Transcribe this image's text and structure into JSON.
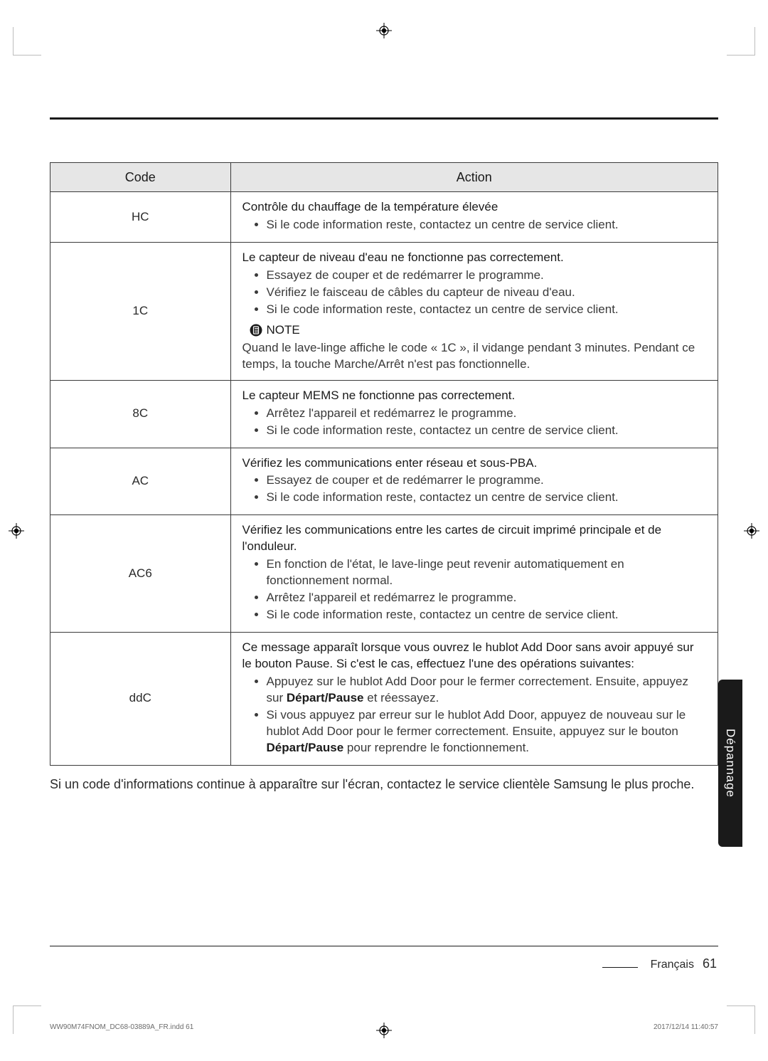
{
  "registration_mark": {
    "stroke": "#000000"
  },
  "crop_color": "#bdbdbd",
  "rule_color": "#1a1a1a",
  "table": {
    "header_bg": "#e6e6e6",
    "border_color": "#3a3a3a",
    "text_color": "#3a3a3a",
    "lead_color": "#1a1a1a",
    "columns": [
      "Code",
      "Action"
    ],
    "rows": [
      {
        "code": "HC",
        "lead": "Contrôle du chauffage de la température élevée",
        "bullets": [
          "Si le code information reste, contactez un centre de service client."
        ]
      },
      {
        "code": "1C",
        "lead": "Le capteur de niveau d'eau ne fonctionne pas correctement.",
        "bullets": [
          "Essayez de couper et de redémarrer le programme.",
          "Vérifiez le faisceau de câbles du capteur de niveau d'eau.",
          "Si le code information reste, contactez un centre de service client."
        ],
        "note_label": "NOTE",
        "note_body": "Quand le lave-linge affiche le code « 1C », il vidange pendant 3 minutes. Pendant ce temps, la touche Marche/Arrêt n'est pas fonctionnelle."
      },
      {
        "code": "8C",
        "lead": "Le capteur MEMS ne fonctionne pas correctement.",
        "bullets": [
          "Arrêtez l'appareil et redémarrez le programme.",
          "Si le code information reste, contactez un centre de service client."
        ]
      },
      {
        "code": "AC",
        "lead": "Vérifiez les communications enter réseau et sous-PBA.",
        "bullets": [
          "Essayez de couper et de redémarrer le programme.",
          "Si le code information reste, contactez un centre de service client."
        ]
      },
      {
        "code": "AC6",
        "lead": "Vérifiez les communications entre les cartes de circuit imprimé principale et de l'onduleur.",
        "bullets": [
          "En fonction de l'état, le lave-linge peut revenir automatiquement en fonctionnement normal.",
          "Arrêtez l'appareil et redémarrez le programme.",
          "Si le code information reste, contactez un centre de service client."
        ]
      },
      {
        "code": "ddC",
        "lead": "Ce message apparaît lorsque vous ouvrez le hublot Add Door sans avoir appuyé sur le bouton Pause. Si c'est le cas, effectuez l'une des opérations suivantes:",
        "bullets_rich": [
          [
            {
              "t": "Appuyez sur le hublot Add Door pour le fermer correctement. Ensuite, appuyez sur "
            },
            {
              "t": "Départ/Pause",
              "b": true
            },
            {
              "t": " et réessayez."
            }
          ],
          [
            {
              "t": "Si vous appuyez par erreur sur le hublot Add Door, appuyez de nouveau sur le hublot Add Door pour le fermer correctement. Ensuite, appuyez sur le bouton "
            },
            {
              "t": "Départ/Pause",
              "b": true
            },
            {
              "t": " pour reprendre le fonctionnement."
            }
          ]
        ]
      }
    ]
  },
  "after_paragraph": "Si un code d'informations continue à apparaître sur l'écran, contactez le service clientèle Samsung le plus proche.",
  "side_tab": {
    "label": "Dépannage",
    "bg": "#1a1a1a",
    "fg": "#ffffff"
  },
  "footer": {
    "language": "Français",
    "page_number": "61"
  },
  "imprint": {
    "left": "WW90M74FNOM_DC68-03889A_FR.indd   61",
    "right": "2017/12/14   11:40:57"
  }
}
